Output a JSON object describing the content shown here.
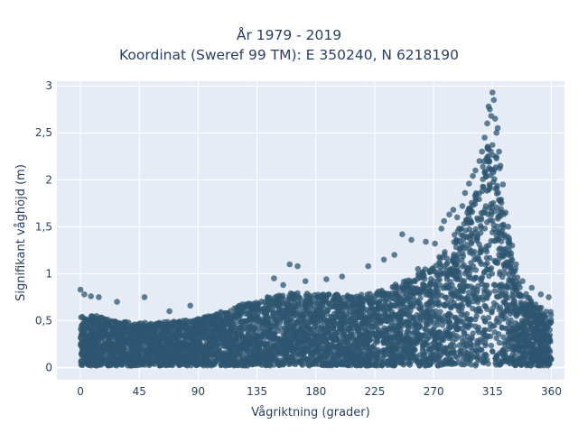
{
  "chart_data": {
    "type": "scatter",
    "title": "År 1979 - 2019",
    "subtitle": "Koordinat (Sweref 99 TM): E 350240, N 6218190",
    "xlabel": "Vågriktning (grader)",
    "ylabel": "Signifikant våghöjd (m)",
    "xlim": [
      -18,
      370
    ],
    "ylim": [
      -0.13,
      3.05
    ],
    "x_ticks": [
      0,
      45,
      90,
      135,
      180,
      225,
      270,
      315,
      360
    ],
    "y_ticks": [
      {
        "value": 0,
        "label": "0"
      },
      {
        "value": 0.5,
        "label": "0,5"
      },
      {
        "value": 1,
        "label": "1"
      },
      {
        "value": 1.5,
        "label": "1,5"
      },
      {
        "value": 2,
        "label": "2"
      },
      {
        "value": 2.5,
        "label": "2,5"
      },
      {
        "value": 3,
        "label": "3"
      }
    ],
    "grid": true,
    "marker_color": "#2f5670",
    "background_color": "#e5ecf6",
    "envelope": {
      "x": [
        0,
        10,
        20,
        30,
        45,
        60,
        75,
        90,
        105,
        120,
        135,
        150,
        165,
        180,
        195,
        210,
        225,
        240,
        255,
        270,
        280,
        290,
        300,
        305,
        310,
        315,
        320,
        325,
        330,
        335,
        340,
        350,
        360
      ],
      "upper": [
        0.55,
        0.56,
        0.52,
        0.5,
        0.48,
        0.48,
        0.5,
        0.52,
        0.58,
        0.66,
        0.72,
        0.78,
        0.8,
        0.78,
        0.78,
        0.77,
        0.8,
        0.88,
        0.98,
        1.1,
        1.3,
        1.5,
        1.8,
        2.0,
        2.3,
        2.55,
        2.2,
        1.6,
        1.2,
        0.95,
        0.8,
        0.65,
        0.6
      ]
    },
    "outliers": [
      [
        0,
        0.83
      ],
      [
        3,
        0.78
      ],
      [
        8,
        0.76
      ],
      [
        14,
        0.75
      ],
      [
        28,
        0.7
      ],
      [
        49,
        0.75
      ],
      [
        68,
        0.6
      ],
      [
        84,
        0.66
      ],
      [
        148,
        0.95
      ],
      [
        155,
        0.88
      ],
      [
        160,
        1.1
      ],
      [
        166,
        1.08
      ],
      [
        172,
        0.92
      ],
      [
        188,
        0.94
      ],
      [
        200,
        0.97
      ],
      [
        220,
        1.08
      ],
      [
        232,
        1.15
      ],
      [
        240,
        1.2
      ],
      [
        246,
        1.42
      ],
      [
        253,
        1.36
      ],
      [
        258,
        1.05
      ],
      [
        264,
        1.34
      ],
      [
        271,
        1.32
      ],
      [
        276,
        1.48
      ],
      [
        278,
        1.56
      ],
      [
        282,
        1.63
      ],
      [
        285,
        1.68
      ],
      [
        288,
        1.6
      ],
      [
        292,
        1.72
      ],
      [
        294,
        1.86
      ],
      [
        297,
        1.96
      ],
      [
        300,
        2.04
      ],
      [
        302,
        2.1
      ],
      [
        305,
        2.2
      ],
      [
        307,
        2.3
      ],
      [
        309,
        2.45
      ],
      [
        311,
        2.6
      ],
      [
        312,
        2.78
      ],
      [
        313,
        2.75
      ],
      [
        314,
        2.68
      ],
      [
        315,
        2.93
      ],
      [
        316,
        2.85
      ],
      [
        317,
        2.65
      ],
      [
        318,
        2.5
      ],
      [
        319,
        2.55
      ],
      [
        320,
        2.3
      ],
      [
        321,
        2.15
      ],
      [
        323,
        1.95
      ],
      [
        325,
        1.65
      ],
      [
        327,
        1.5
      ],
      [
        330,
        1.3
      ],
      [
        333,
        1.1
      ],
      [
        338,
        0.92
      ],
      [
        345,
        0.85
      ],
      [
        352,
        0.78
      ],
      [
        358,
        0.75
      ]
    ]
  }
}
